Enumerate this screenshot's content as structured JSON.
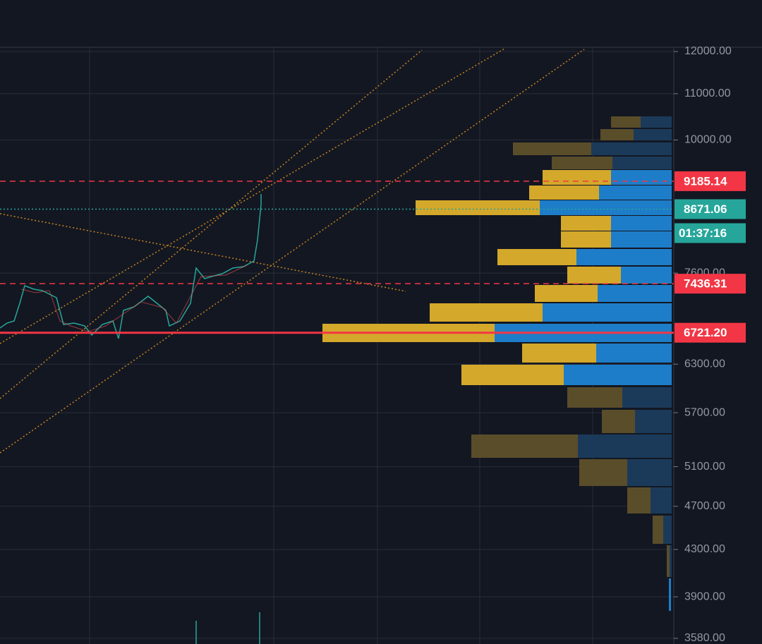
{
  "chart_data": {
    "type": "price-chart",
    "log_scale": true,
    "ylim": [
      3580,
      12000
    ],
    "yticks": [
      {
        "value": 12000,
        "label": "12000.00"
      },
      {
        "value": 11000,
        "label": "11000.00"
      },
      {
        "value": 10000,
        "label": "10000.00"
      },
      {
        "value": 7600,
        "label": "7600.00"
      },
      {
        "value": 6300,
        "label": "6300.00"
      },
      {
        "value": 5700,
        "label": "5700.00"
      },
      {
        "value": 5100,
        "label": "5100.00"
      },
      {
        "value": 4700,
        "label": "4700.00"
      },
      {
        "value": 4300,
        "label": "4300.00"
      },
      {
        "value": 3900,
        "label": "3900.00"
      },
      {
        "value": 3580,
        "label": "3580.00"
      }
    ],
    "grid": true,
    "price_lines": [
      {
        "price": 9185.14,
        "color": "#f23645",
        "style": "dashed"
      },
      {
        "price": 8671.06,
        "color": "#26a69a",
        "style": "dotted",
        "countdown": "01:37:16"
      },
      {
        "price": 7436.31,
        "color": "#f23645",
        "style": "dashed"
      },
      {
        "price": {
          "value": 6721.2,
          "label": "6721.20"
        },
        "color": "#f23645",
        "style": "solid"
      }
    ]
  }
}
